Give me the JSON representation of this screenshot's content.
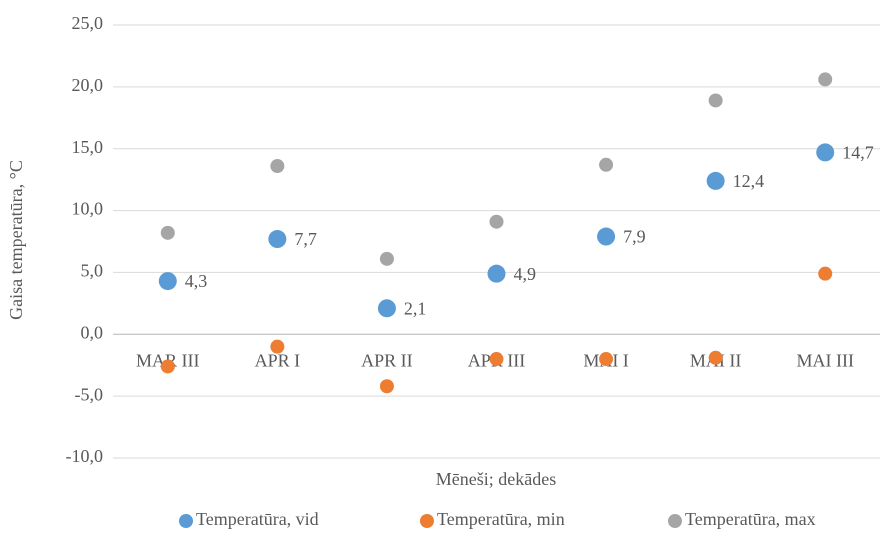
{
  "chart_data": {
    "type": "scatter",
    "categories": [
      "MAR III",
      "APR I",
      "APR II",
      "APR III",
      "MAI I",
      "MAI II",
      "MAI III"
    ],
    "series": [
      {
        "name": "Temperatūra, vid",
        "color": "#5b9bd5",
        "values": [
          4.3,
          7.7,
          2.1,
          4.9,
          7.9,
          12.4,
          14.7
        ],
        "value_labels": [
          "4,3",
          "7,7",
          "2,1",
          "4,9",
          "7,9",
          "12,4",
          "14,7"
        ]
      },
      {
        "name": "Temperatūra, min",
        "color": "#ed7d31",
        "values": [
          -2.6,
          -1.0,
          -4.2,
          -2.0,
          -2.0,
          -1.9,
          4.9
        ]
      },
      {
        "name": "Temperatūra, max",
        "color": "#a5a5a5",
        "values": [
          8.2,
          13.6,
          6.1,
          9.1,
          13.7,
          18.9,
          20.6
        ]
      }
    ],
    "xlabel": "Mēneši; dekādes",
    "ylabel": "Gaisa temperatūra, °C",
    "ylim": [
      -10,
      25
    ],
    "yticks": [
      {
        "value": -10,
        "label": "-10,0"
      },
      {
        "value": -5,
        "label": "-5,0"
      },
      {
        "value": 0,
        "label": "0,0"
      },
      {
        "value": 5,
        "label": "5,0"
      },
      {
        "value": 10,
        "label": "10,0"
      },
      {
        "value": 15,
        "label": "15,0"
      },
      {
        "value": 20,
        "label": "20,0"
      },
      {
        "value": 25,
        "label": "25,0"
      }
    ],
    "grid": true,
    "legend": "bottom"
  }
}
